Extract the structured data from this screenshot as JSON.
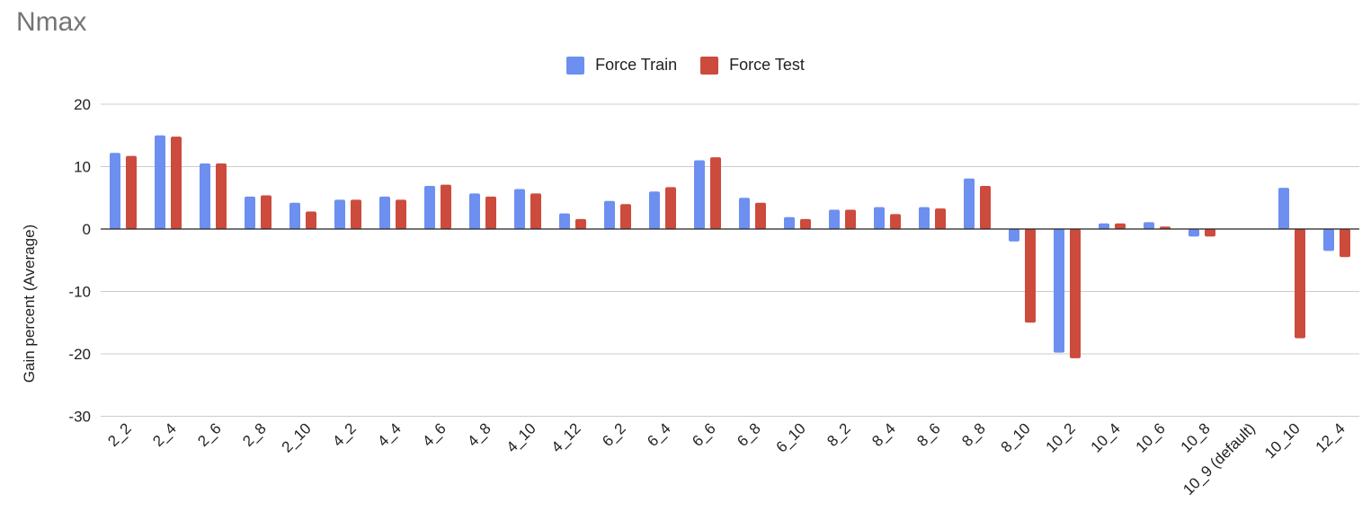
{
  "chart_data": {
    "type": "bar",
    "title": "Nmax",
    "xlabel": "",
    "ylabel": "Gain percent (Average)",
    "ylim": [
      -30,
      20
    ],
    "yticks": [
      20,
      10,
      0,
      -10,
      -20,
      -30
    ],
    "grid": true,
    "legend_position": "top-center",
    "categories": [
      "2_2",
      "2_4",
      "2_6",
      "2_8",
      "2_10",
      "4_2",
      "4_4",
      "4_6",
      "4_8",
      "4_10",
      "4_12",
      "6_2",
      "6_4",
      "6_6",
      "6_8",
      "6_10",
      "8_2",
      "8_4",
      "8_6",
      "8_8",
      "8_10",
      "10_2",
      "10_4",
      "10_6",
      "10_8",
      "10_9 (default)",
      "10_10",
      "12_4"
    ],
    "series": [
      {
        "name": "Force Train",
        "color": "#6d8ff0",
        "values": [
          12.2,
          15.0,
          10.5,
          5.2,
          4.2,
          4.7,
          5.2,
          6.9,
          5.7,
          6.4,
          2.5,
          4.5,
          6.0,
          11.0,
          5.0,
          1.9,
          3.1,
          3.5,
          3.5,
          8.1,
          -2.0,
          -19.8,
          0.9,
          1.1,
          -1.2,
          0.0,
          6.6,
          -3.5
        ]
      },
      {
        "name": "Force Test",
        "color": "#cc4b3c",
        "values": [
          11.7,
          14.8,
          10.5,
          5.4,
          2.8,
          4.7,
          4.7,
          7.1,
          5.2,
          5.7,
          1.6,
          4.0,
          6.7,
          11.5,
          4.2,
          1.6,
          3.1,
          2.4,
          3.3,
          6.9,
          -15.0,
          -20.7,
          0.9,
          0.4,
          -1.2,
          0.0,
          -17.5,
          -4.5
        ]
      }
    ]
  }
}
